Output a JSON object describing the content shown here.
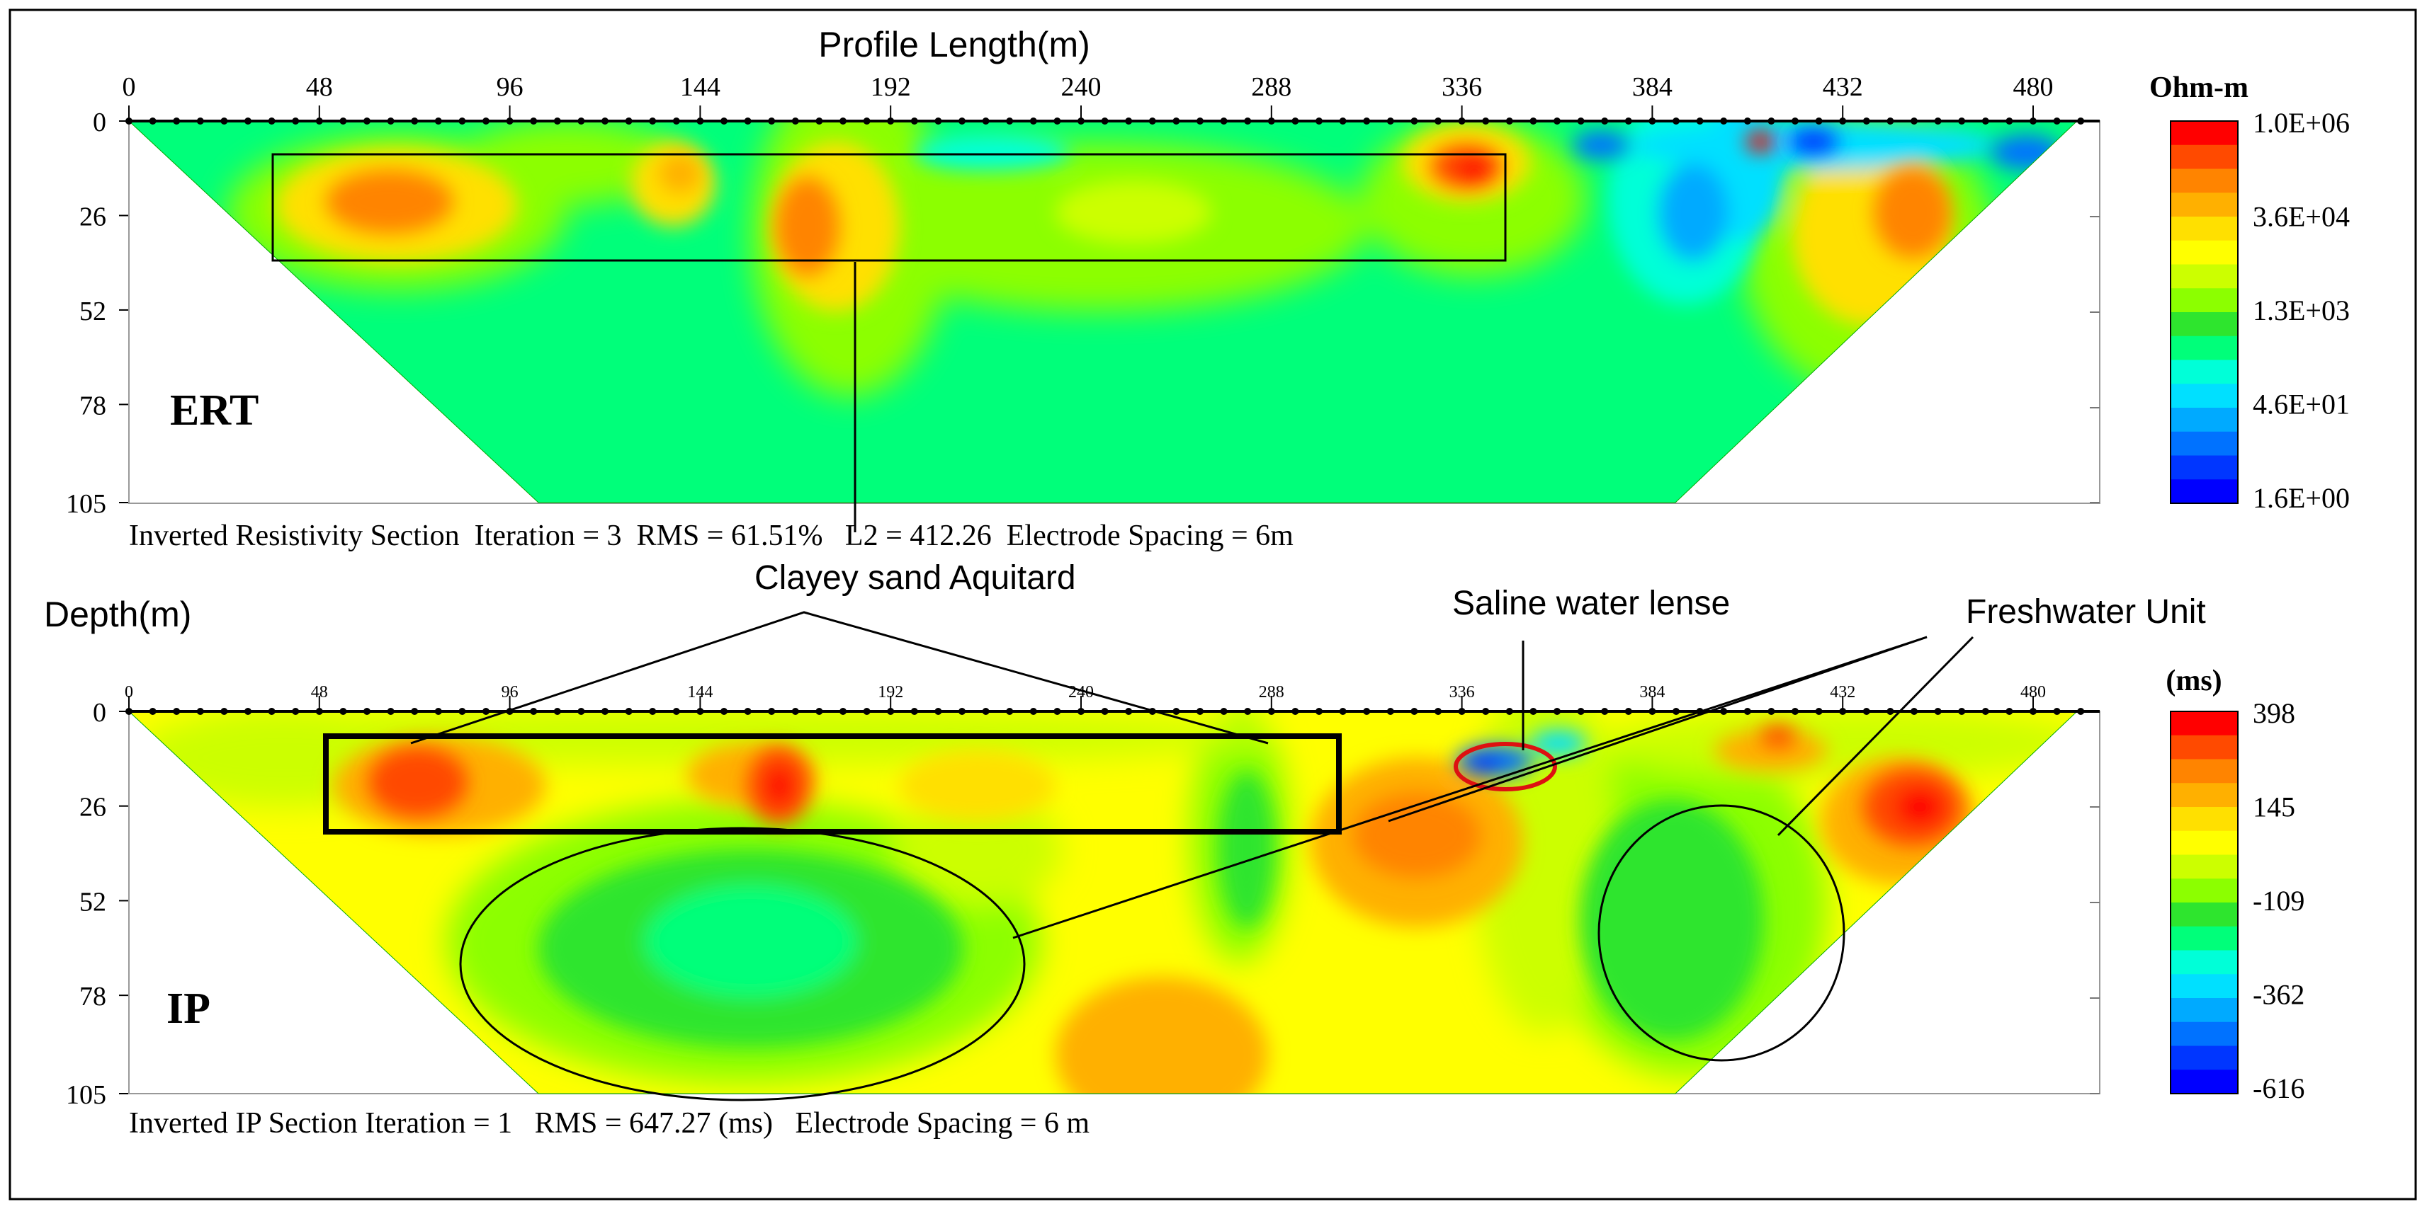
{
  "figure": {
    "top_axis_title": "Profile Length(m)",
    "depth_axis_title": "Depth(m)",
    "x_ticks": [
      "0",
      "48",
      "96",
      "144",
      "192",
      "240",
      "288",
      "336",
      "384",
      "432",
      "480"
    ],
    "ip_x_ticks": [
      "0",
      "48",
      "96",
      "144",
      "192",
      "240",
      "288",
      "336",
      "384",
      "432",
      "480"
    ],
    "depth_ticks": [
      "0",
      "26",
      "52",
      "78",
      "105"
    ]
  },
  "ert": {
    "panel_label": "ERT",
    "caption": "Inverted Resistivity Section  Iteration = 3  RMS = 61.51%   L2 = 412.26  Electrode Spacing = 6m",
    "colorbar_title": "Ohm-m",
    "colorbar_labels": [
      "1.0E+06",
      "3.6E+04",
      "1.3E+03",
      "4.6E+01",
      "1.6E+00"
    ],
    "colors": [
      "#ff0000",
      "#ff4a00",
      "#ff8400",
      "#ffb000",
      "#ffe000",
      "#ffff00",
      "#ccff00",
      "#8cff00",
      "#2ee52e",
      "#00ff7a",
      "#00ffd8",
      "#00e0ff",
      "#00aaff",
      "#0072ff",
      "#0036ff",
      "#0000ff"
    ]
  },
  "ip": {
    "panel_label": "IP",
    "caption": "Inverted IP Section Iteration = 1   RMS = 647.27 (ms)   Electrode Spacing = 6 m",
    "colorbar_title": "(ms)",
    "colorbar_labels": [
      "398",
      "145",
      "-109",
      "-362",
      "-616"
    ],
    "colors": [
      "#ff0000",
      "#ff4a00",
      "#ff8400",
      "#ffb000",
      "#ffe000",
      "#ffff00",
      "#ccff00",
      "#8cff00",
      "#2ee52e",
      "#00ff7a",
      "#00ffd8",
      "#00e0ff",
      "#00aaff",
      "#0072ff",
      "#0036ff",
      "#0000ff"
    ]
  },
  "annotations": {
    "clayey": "Clayey sand Aquitard",
    "saline": "Saline water lense",
    "freshwater": "Freshwater Unit"
  },
  "chart_data": [
    {
      "type": "heatmap",
      "title": "",
      "xlabel": "Profile Length(m)",
      "ylabel": "Depth(m)",
      "xlim": [
        0,
        500
      ],
      "ylim": [
        105,
        0
      ],
      "x_ticks": [
        0,
        48,
        96,
        144,
        192,
        240,
        288,
        336,
        384,
        432,
        480
      ],
      "y_ticks": [
        0,
        26,
        52,
        78,
        105
      ],
      "legend": [
        "1.0E+06",
        "3.6E+04",
        "1.3E+03",
        "4.6E+01",
        "1.6E+00"
      ],
      "legend_unit": "Ohm-m"
    },
    {
      "type": "heatmap",
      "title": "",
      "xlabel": "Profile Length(m)",
      "ylabel": "Depth(m)",
      "xlim": [
        0,
        500
      ],
      "ylim": [
        105,
        0
      ],
      "x_ticks": [
        0,
        48,
        96,
        144,
        192,
        240,
        288,
        336,
        384,
        432,
        480
      ],
      "y_ticks": [
        0,
        26,
        52,
        78,
        105
      ],
      "legend": [
        "398",
        "145",
        "-109",
        "-362",
        "-616"
      ],
      "legend_unit": "(ms)"
    }
  ]
}
